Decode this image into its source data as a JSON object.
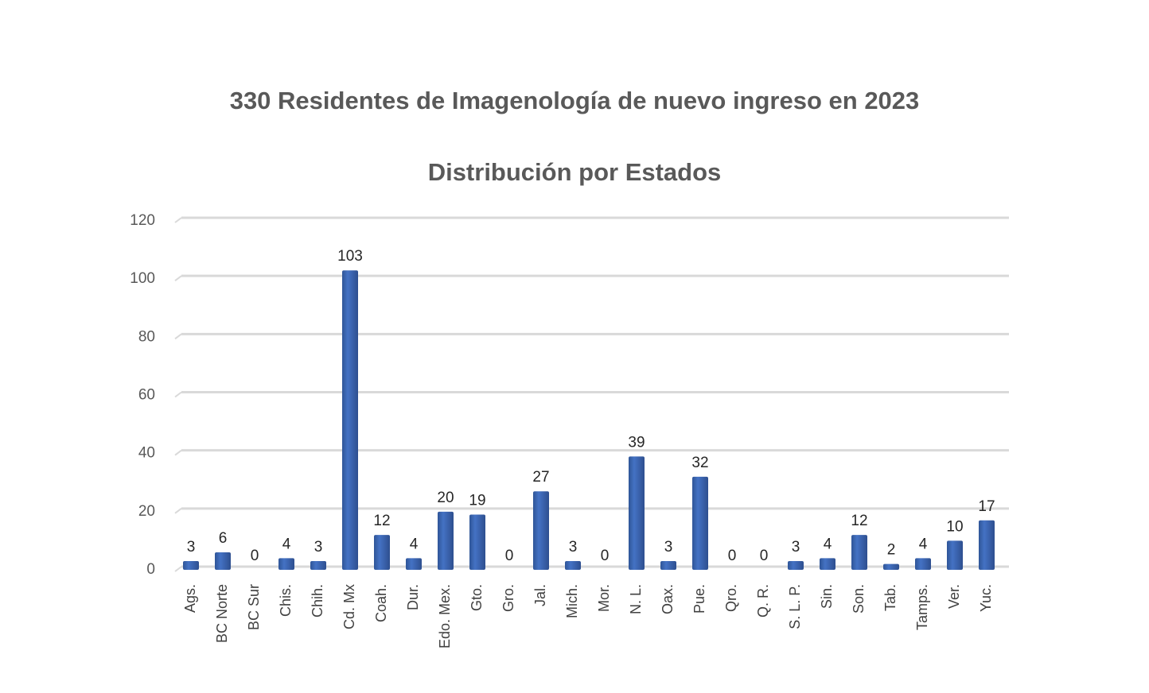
{
  "chart_data": {
    "type": "bar",
    "title": "330 Residentes de Imagenología de nuevo ingreso en 2023",
    "subtitle": "Distribución por Estados",
    "categories": [
      "Ags.",
      "BC Norte",
      "BC Sur",
      "Chis.",
      "Chih.",
      "Cd. Mx",
      "Coah.",
      "Dur.",
      "Edo. Mex.",
      "Gto.",
      "Gro.",
      "Jal.",
      "Mich.",
      "Mor.",
      "N. L.",
      "Oax.",
      "Pue.",
      "Qro.",
      "Q. R.",
      "S. L. P.",
      "Sin.",
      "Son.",
      "Tab.",
      "Tamps.",
      "Ver.",
      "Yuc."
    ],
    "values": [
      3,
      6,
      0,
      4,
      3,
      103,
      12,
      4,
      20,
      19,
      0,
      27,
      3,
      0,
      39,
      3,
      32,
      0,
      0,
      3,
      4,
      12,
      2,
      4,
      10,
      17
    ],
    "color": "#4472c4",
    "ylim": [
      0,
      120
    ],
    "yticks": [
      0,
      20,
      40,
      60,
      80,
      100,
      120
    ],
    "grid": true
  }
}
